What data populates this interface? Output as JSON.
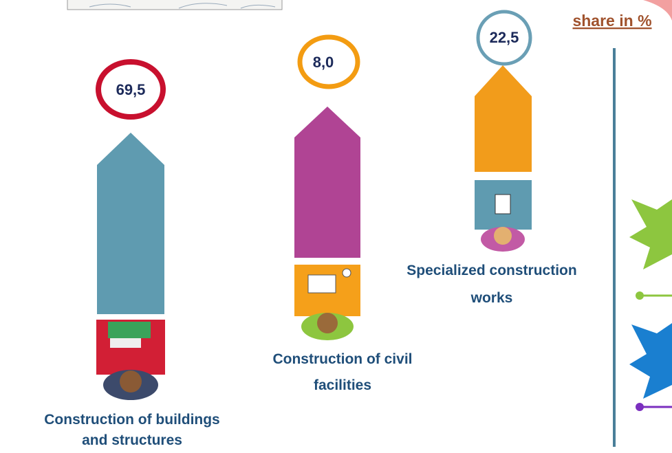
{
  "title": "share in %",
  "items": [
    {
      "value": "69,5",
      "label": [
        "Construction of buildings",
        "and structures"
      ]
    },
    {
      "value": "8,0",
      "label": [
        "Construction of civil",
        "facilities"
      ]
    },
    {
      "value": "22,5",
      "label": [
        "Specialized construction",
        "works"
      ]
    }
  ]
}
